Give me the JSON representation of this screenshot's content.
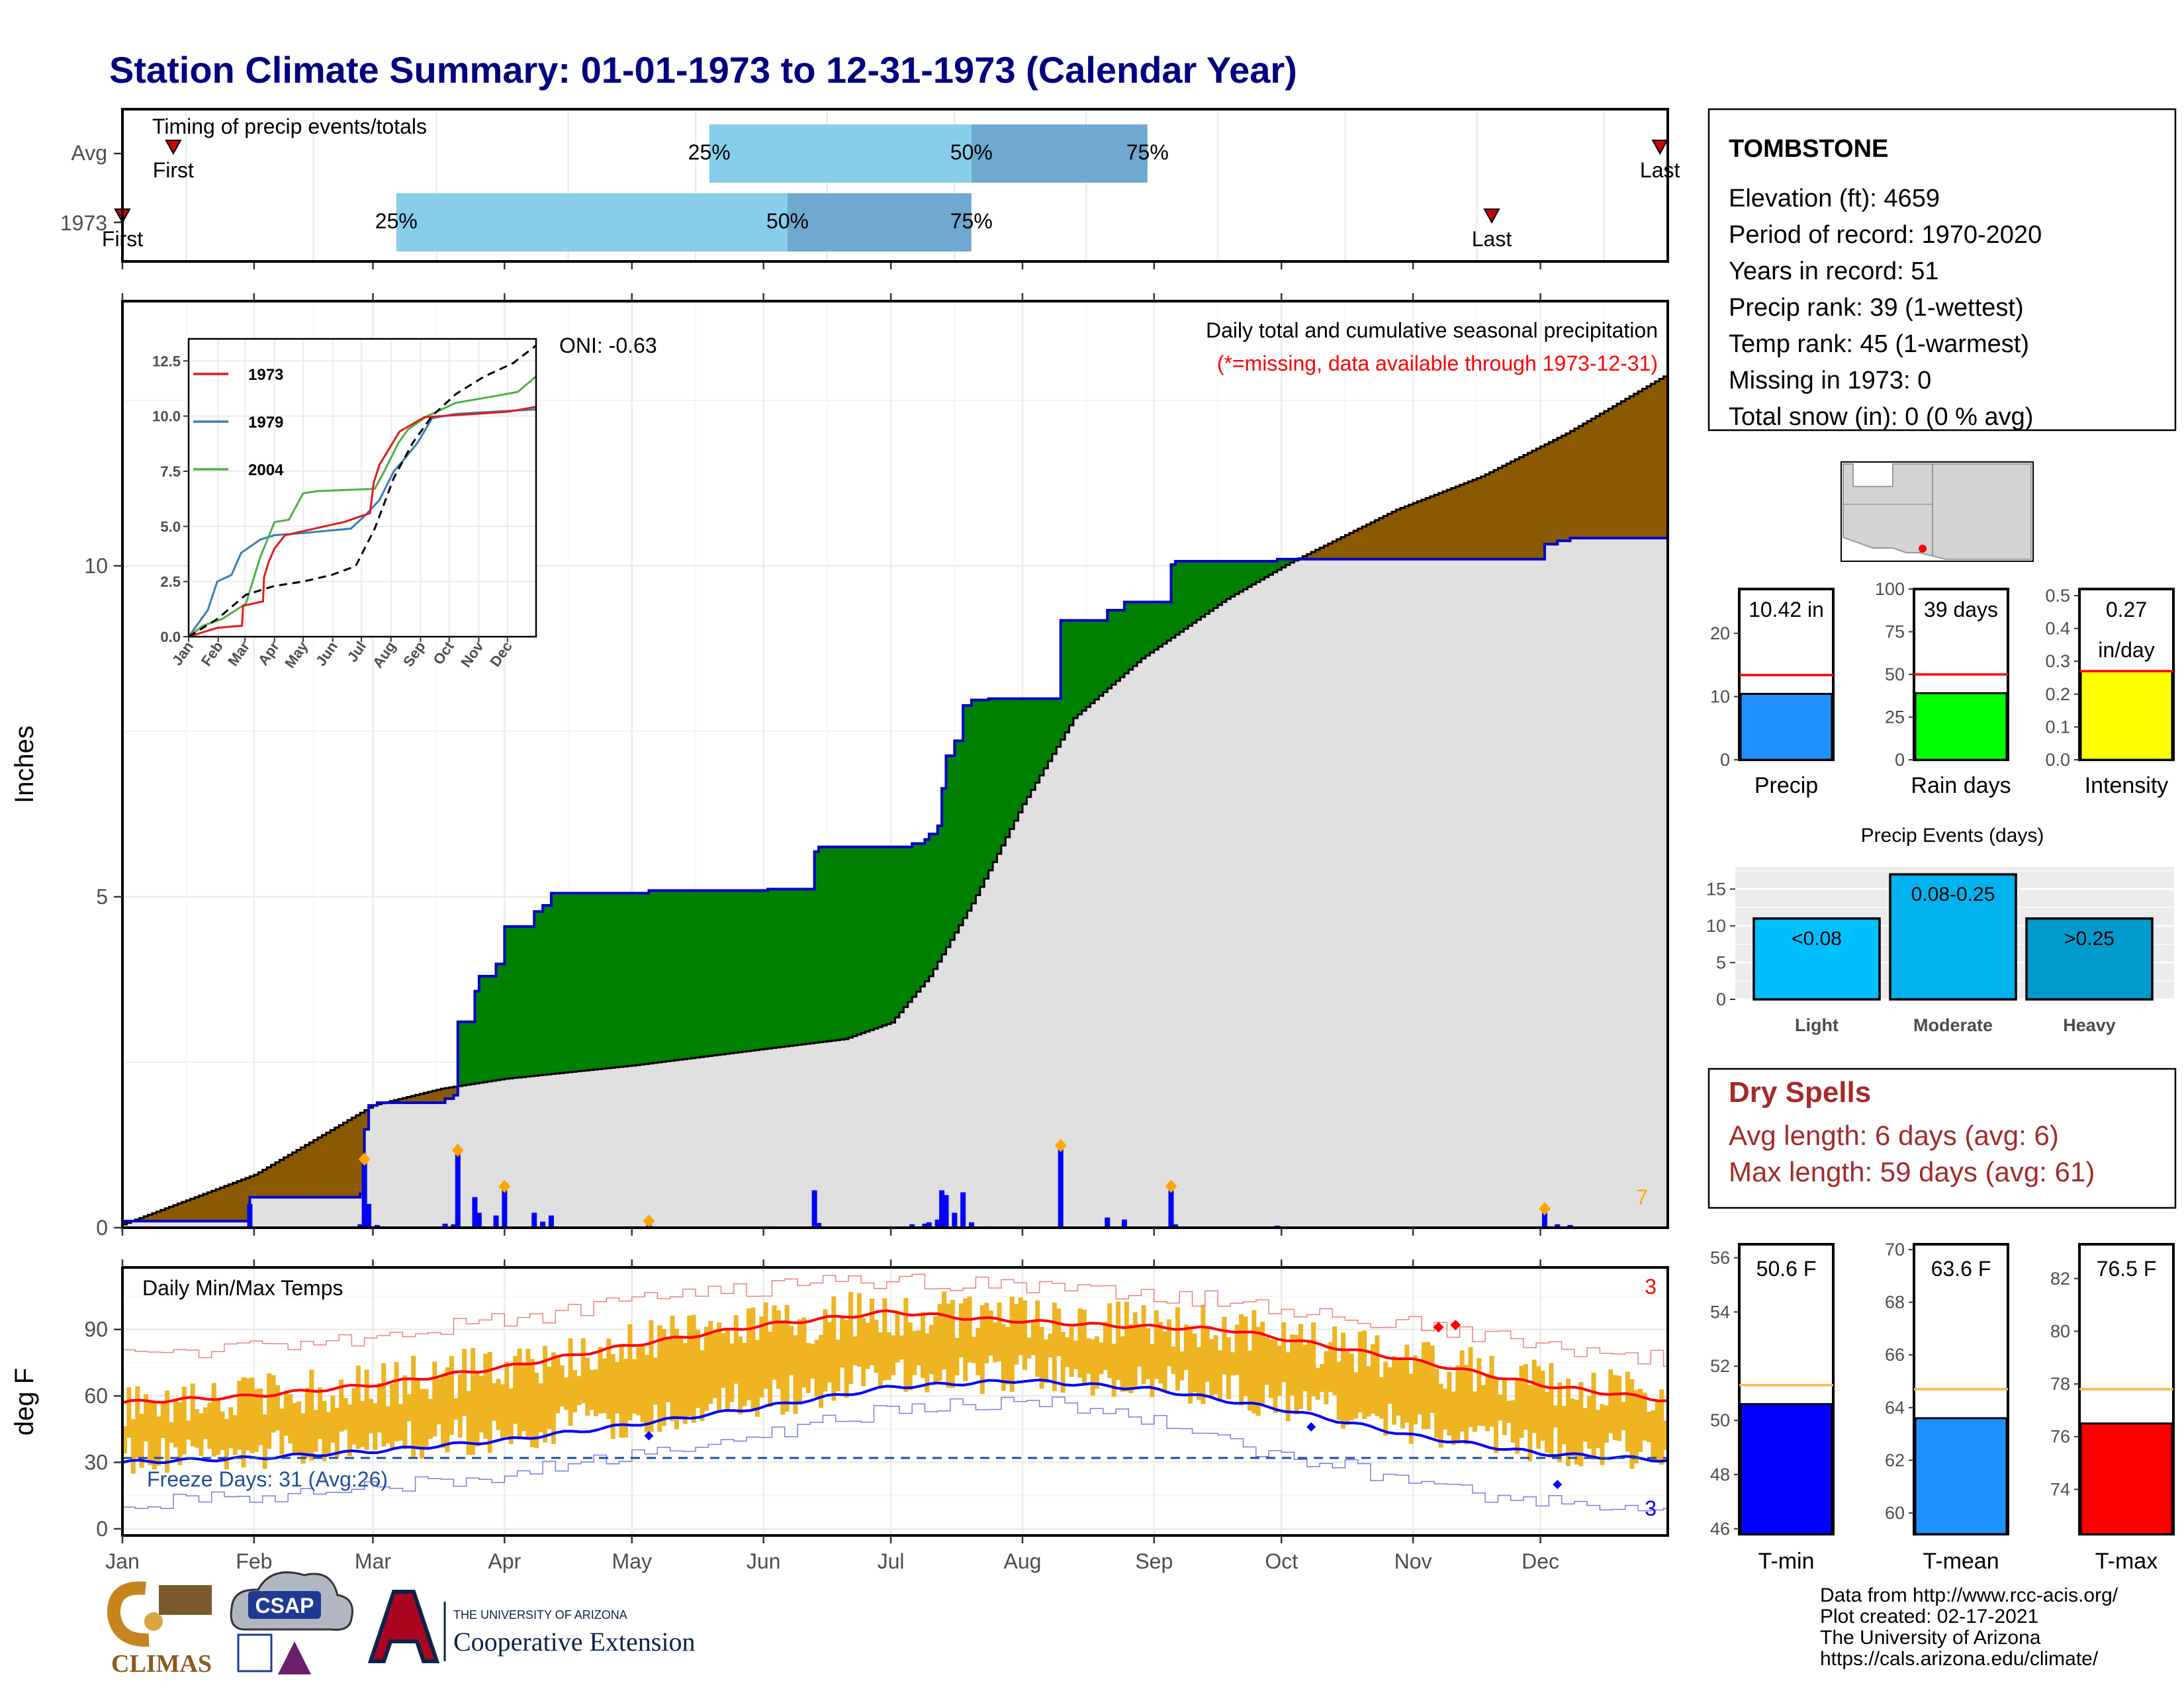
{
  "title": "Station Climate Summary: 01-01-1973 to 12-31-1973 (Calendar Year)",
  "colors": {
    "navy_title": "#000080",
    "light_blue_bar": "#87CEEB",
    "mid_blue_bar": "#6FA8D0",
    "surplus_green": "#008000",
    "deficit_brown": "#8B5A00",
    "avg_fill_gray": "#E0E0E0",
    "blue_line": "#0000CC",
    "daily_bar_blue": "#0000FF",
    "event_marker_orange": "#FFA500",
    "temp_range_gold": "#EEB422",
    "tmax_red": "#FF0000",
    "tmin_blue": "#0000FF",
    "precip_bar": "#1E90FF",
    "raindays_bar": "#00FF00",
    "intensity_bar": "#FFFF00",
    "light_event": "#00BFFF",
    "moderate_event": "#00B2EE",
    "heavy_event": "#009ACD",
    "dry_spells": "#A52A2A",
    "tmean_bar": "#1E90FF",
    "avg_line_orange": "#FFB347"
  },
  "month_labels": [
    "Jan",
    "Feb",
    "Mar",
    "Apr",
    "May",
    "Jun",
    "Jul",
    "Aug",
    "Sep",
    "Oct",
    "Nov",
    "Dec"
  ],
  "timing": {
    "caption": "Timing of precip events/totals",
    "rows": [
      {
        "label": "Avg",
        "first_label": "First",
        "last_label": "Last",
        "first_doy": 13,
        "last_doy": 393,
        "p25_doy": 150,
        "p50_doy": 217,
        "p75_doy": 262,
        "p25_label": "25%",
        "p50_label": "50%",
        "p75_label": "75%"
      },
      {
        "label": "1973",
        "first_label": "First",
        "last_label": "Last",
        "first_doy": 0,
        "last_doy": 350,
        "p25_doy": 70,
        "p50_doy": 170,
        "p75_doy": 217,
        "p25_label": "25%",
        "p50_label": "50%",
        "p75_label": "75%"
      }
    ]
  },
  "main": {
    "ylabel": "Inches",
    "y_ticks": [
      "0",
      "5",
      "10"
    ],
    "oni_label": "ONI: -0.63",
    "subtitle": "Daily total and cumulative seasonal precipitation",
    "missing_note": "(*=missing, data available through 1973-12-31)",
    "corner_count": "7"
  },
  "inset": {
    "y_ticks": [
      "0.0",
      "2.5",
      "5.0",
      "7.5",
      "10.0",
      "12.5"
    ],
    "x_ticks": [
      "Jan",
      "Feb",
      "Mar",
      "Apr",
      "May",
      "Jun",
      "Jul",
      "Aug",
      "Sep",
      "Oct",
      "Nov",
      "Dec"
    ],
    "legend": [
      {
        "name": "1973",
        "color": "#E41A1C"
      },
      {
        "name": "1979",
        "color": "#377EB8"
      },
      {
        "name": "2004",
        "color": "#4DAF4A"
      }
    ]
  },
  "temps": {
    "caption": "Daily Min/Max Temps",
    "ylabel": "deg F",
    "y_ticks": [
      "0",
      "30",
      "60",
      "90"
    ],
    "freeze_label": "Freeze Days: 31 (Avg:26)",
    "max_count": "3",
    "min_count": "3"
  },
  "station": {
    "name": "TOMBSTONE",
    "lines": [
      "Elevation (ft): 4659",
      "Period of record: 1970-2020",
      "Years in record: 51",
      "Precip rank: 39 (1-wettest)",
      "Temp rank: 45 (1-warmest)",
      "Missing in 1973: 0",
      "Total snow (in): 0 (0 % avg)"
    ]
  },
  "summary_bars": [
    {
      "label": "Precip",
      "value_label": "10.42 in",
      "value": 10.42,
      "avg": 13.4,
      "ymax": 27,
      "ticks": [
        "0",
        "10",
        "20"
      ],
      "tick_values": [
        0,
        10,
        20
      ]
    },
    {
      "label": "Rain days",
      "value_label": "39 days",
      "value": 39,
      "avg": 50,
      "ymax": 100,
      "ticks": [
        "0",
        "25",
        "50",
        "75",
        "100"
      ],
      "tick_values": [
        0,
        25,
        50,
        75,
        100
      ]
    },
    {
      "label": "Intensity",
      "value_label": "0.27",
      "value_label2": "in/day",
      "value": 0.27,
      "avg": 0.27,
      "ymax": 0.52,
      "ticks": [
        "0.0",
        "0.1",
        "0.2",
        "0.3",
        "0.4",
        "0.5"
      ],
      "tick_values": [
        0,
        0.1,
        0.2,
        0.3,
        0.4,
        0.5
      ]
    }
  ],
  "precip_events": {
    "title": "Precip Events (days)",
    "ticks": [
      "0",
      "5",
      "10",
      "15"
    ],
    "bars": [
      {
        "label": "Light",
        "value_label": "<0.08",
        "value": 11
      },
      {
        "label": "Moderate",
        "value_label": "0.08-0.25",
        "value": 17
      },
      {
        "label": "Heavy",
        "value_label": ">0.25",
        "value": 11
      }
    ]
  },
  "dry_spells": {
    "title": "Dry Spells",
    "avg_line": "Avg length: 6 days (avg: 6)",
    "max_line": "Max length: 59 days (avg: 61)"
  },
  "temp_bars": [
    {
      "label": "T-min",
      "value_label": "50.6 F",
      "value": 50.6,
      "avg": 51.3,
      "ymin": 45.8,
      "ymax": 56.5,
      "ticks": [
        "46",
        "48",
        "50",
        "52",
        "54",
        "56"
      ],
      "tick_values": [
        46,
        48,
        50,
        52,
        54,
        56
      ]
    },
    {
      "label": "T-mean",
      "value_label": "63.6 F",
      "value": 63.6,
      "avg": 64.7,
      "ymin": 59.2,
      "ymax": 70.2,
      "ticks": [
        "60",
        "62",
        "64",
        "66",
        "68",
        "70"
      ],
      "tick_values": [
        60,
        62,
        64,
        66,
        68,
        70
      ]
    },
    {
      "label": "T-max",
      "value_label": "76.5 F",
      "value": 76.5,
      "avg": 77.8,
      "ymin": 72.3,
      "ymax": 83.3,
      "ticks": [
        "74",
        "76",
        "78",
        "80",
        "82"
      ],
      "tick_values": [
        74,
        76,
        78,
        80,
        82
      ]
    }
  ],
  "credits": [
    "Data from http://www.rcc-acis.org/",
    "Plot created: 02-17-2021",
    "The University of Arizona",
    "https://cals.arizona.edu/climate/"
  ],
  "logos": {
    "climas": "CLIMAS",
    "csap": "CSAP",
    "ua_small": "THE UNIVERSITY OF ARIZONA",
    "ua_large": "Cooperative Extension"
  },
  "chart_data": [
    {
      "type": "bar",
      "title": "Timing of precip events/totals",
      "categories": [
        "Avg",
        "1973"
      ],
      "series": [
        {
          "name": "25%",
          "values": [
            150,
            70
          ]
        },
        {
          "name": "50%",
          "values": [
            217,
            170
          ]
        },
        {
          "name": "75%",
          "values": [
            262,
            217
          ]
        }
      ],
      "xlabel": "",
      "ylabel": ""
    },
    {
      "type": "area",
      "title": "Daily total and cumulative seasonal precipitation",
      "ylabel": "Inches",
      "ylim": [
        0,
        13.7
      ],
      "x": [
        0,
        30,
        60,
        75,
        90,
        120,
        150,
        165,
        180,
        190,
        200,
        212,
        224,
        240,
        260,
        280,
        300,
        320,
        340,
        364
      ],
      "series": [
        {
          "name": "1973",
          "values": [
            0.1,
            0.1,
            1.9,
            3.95,
            4.6,
            4.6,
            4.75,
            5.45,
            5.6,
            7.75,
            7.75,
            9.3,
            9.6,
            9.95,
            9.95,
            9.95,
            9.95,
            10.0,
            10.42,
            10.42
          ]
        },
        {
          "name": "Avg",
          "values": [
            0.05,
            0.8,
            1.8,
            2.15,
            2.3,
            2.5,
            2.7,
            2.85,
            3.15,
            4.6,
            6.0,
            7.5,
            8.3,
            9.4,
            10.25,
            10.85,
            11.3,
            11.9,
            12.45,
            12.9
          ]
        }
      ]
    },
    {
      "type": "line",
      "title": "Daily Min/Max Temps",
      "ylabel": "deg F",
      "ylim": [
        -5,
        118
      ],
      "x": [
        0,
        31,
        59,
        90,
        120,
        151,
        181,
        212,
        243,
        273,
        304,
        334,
        364
      ],
      "series": [
        {
          "name": "Avg max",
          "values": [
            58,
            61,
            66,
            74,
            84,
            94,
            99,
            93,
            91,
            86,
            76,
            66,
            58
          ]
        },
        {
          "name": "Avg min",
          "values": [
            30,
            32,
            35,
            40,
            48,
            56,
            66,
            68,
            63,
            56,
            42,
            34,
            30
          ]
        }
      ]
    },
    {
      "type": "bar",
      "title": "Precip Events (days)",
      "categories": [
        "Light",
        "Moderate",
        "Heavy"
      ],
      "values": [
        11,
        17,
        11
      ]
    }
  ]
}
